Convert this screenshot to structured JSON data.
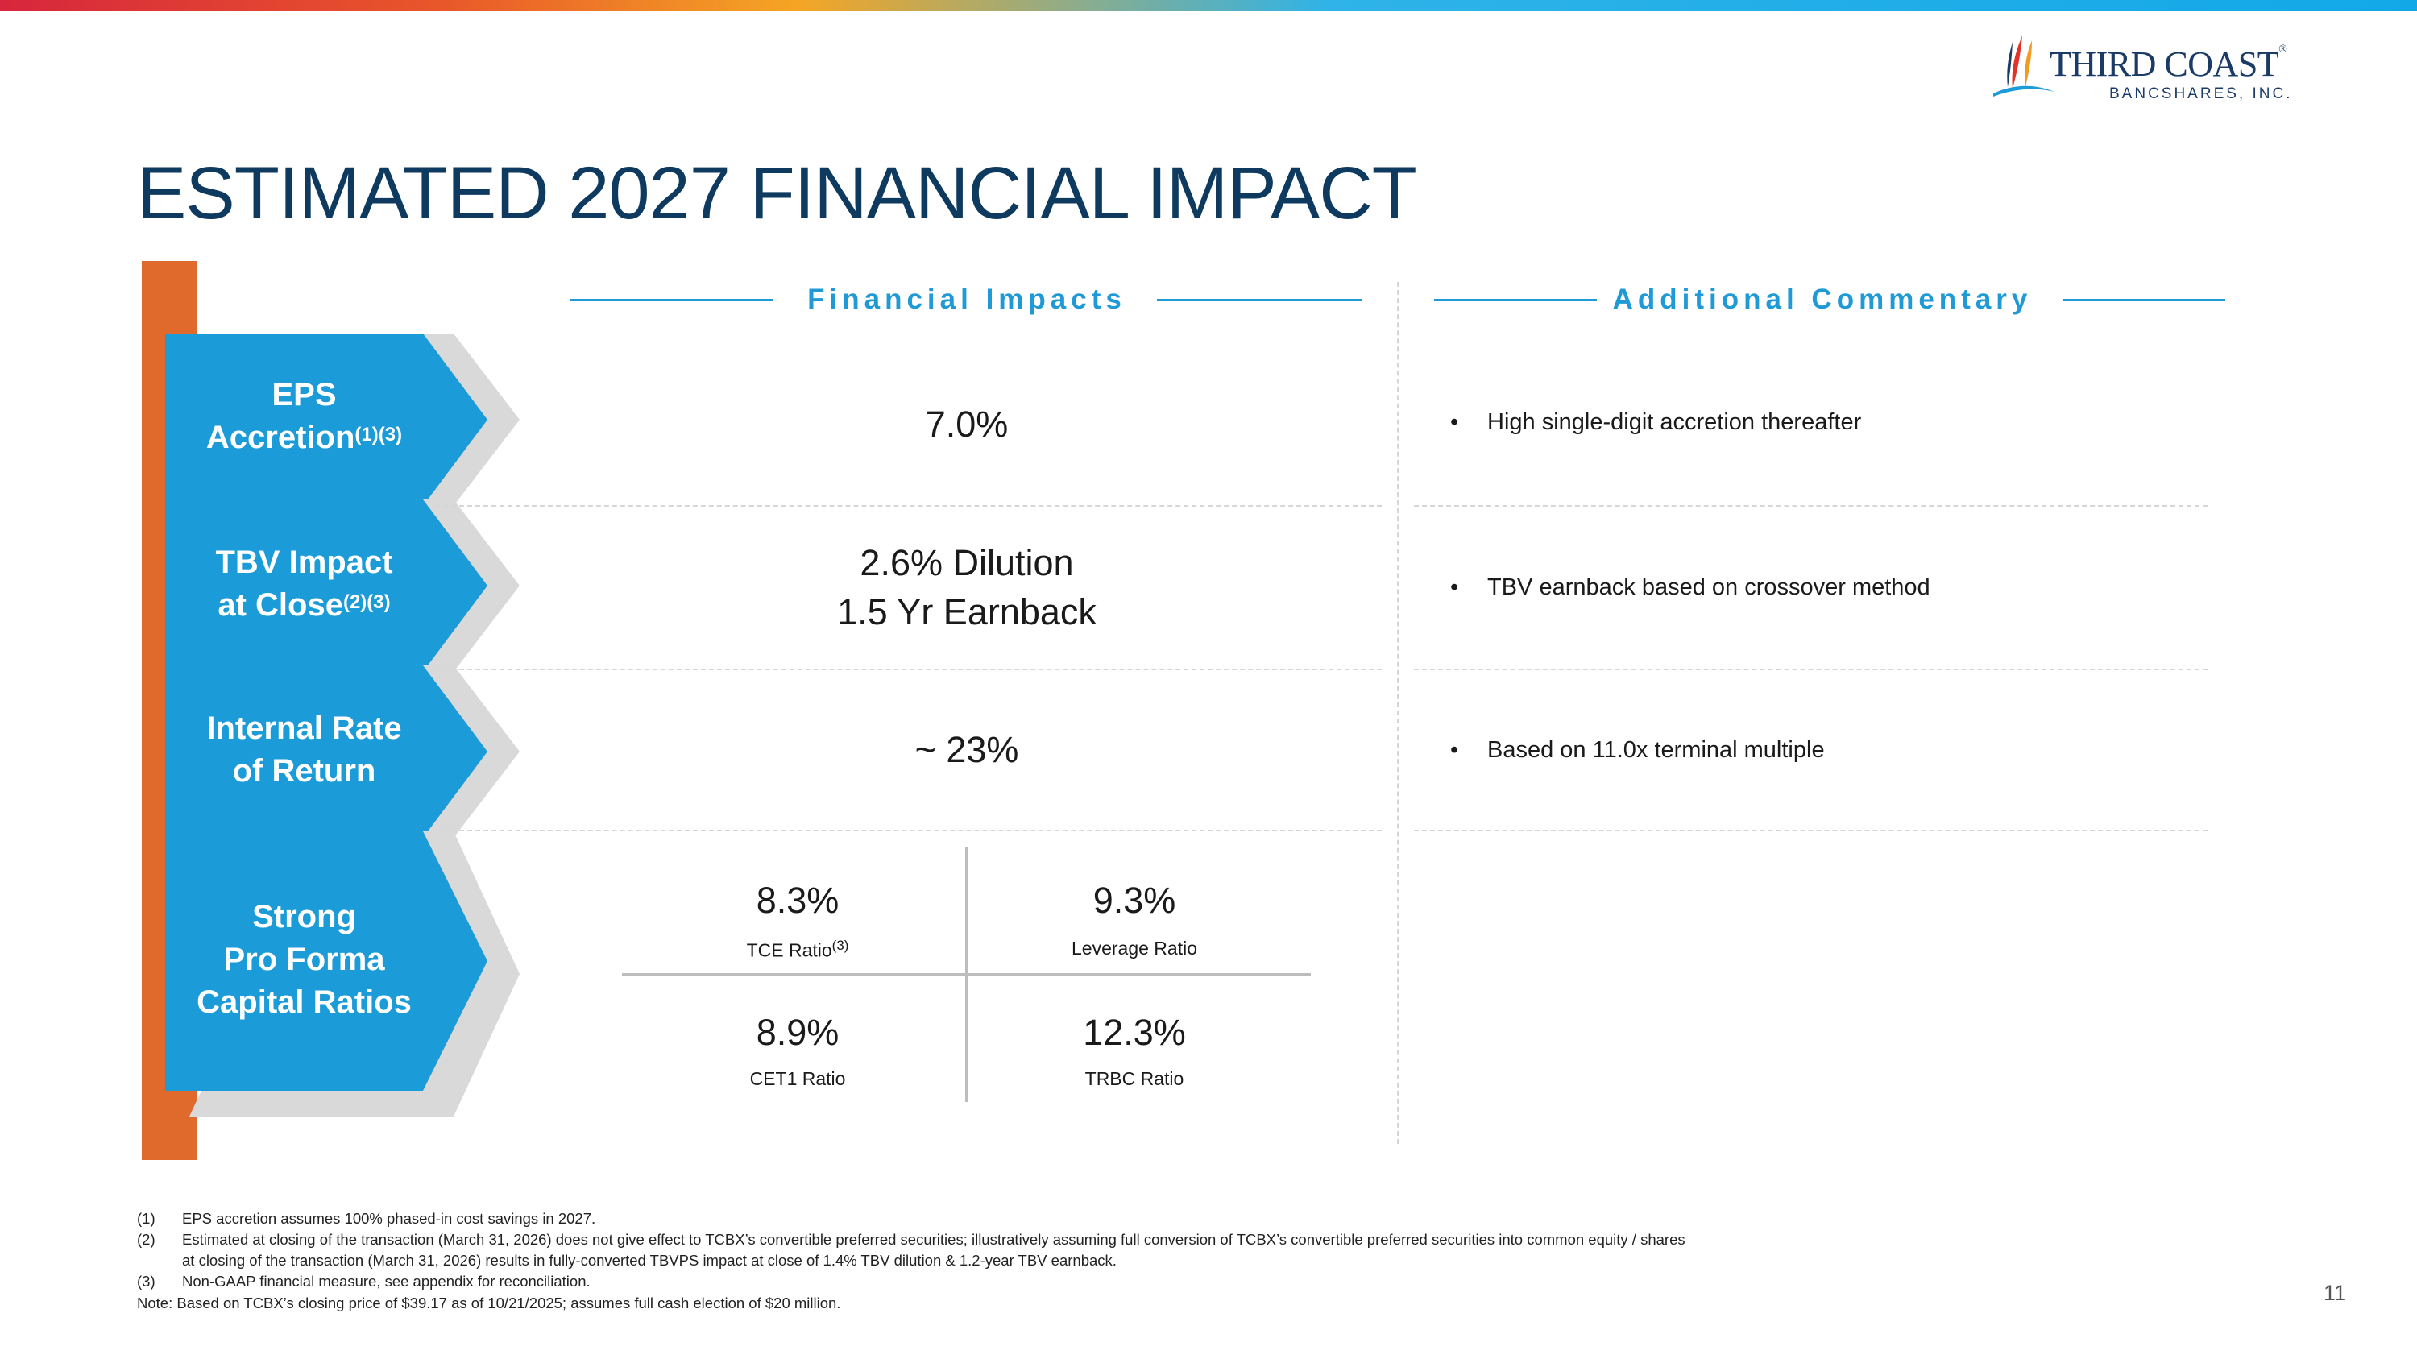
{
  "logo": {
    "name": "THIRD COAST",
    "registered": "®",
    "subtitle": "BANCSHARES, INC."
  },
  "title": "ESTIMATED 2027 FINANCIAL IMPACT",
  "sections": {
    "left_header": "Financial Impacts",
    "right_header": "Additional Commentary"
  },
  "colors": {
    "brand_blue": "#1b9bd7",
    "title_navy": "#0f3a5f",
    "orange": "#e06a2b",
    "header_blue": "#1f9ad6"
  },
  "rows": [
    {
      "label_line1": "EPS",
      "label_line2": "Accretion",
      "label_sup": "(1)(3)",
      "value": "7.0%",
      "comment": "High single-digit accretion thereafter"
    },
    {
      "label_line1": "TBV Impact",
      "label_line2": "at Close",
      "label_sup": "(2)(3)",
      "value_line1": "2.6% Dilution",
      "value_line2": "1.5 Yr Earnback",
      "comment": "TBV earnback based on crossover method"
    },
    {
      "label_line1": "Internal Rate",
      "label_line2": "of Return",
      "value": "~ 23%",
      "comment": "Based on 11.0x terminal multiple"
    },
    {
      "label_line1": "Strong",
      "label_line2": "Pro Forma",
      "label_line3": "Capital Ratios"
    }
  ],
  "capital_ratios": [
    {
      "value": "8.3%",
      "label": "TCE Ratio",
      "sup": "(3)"
    },
    {
      "value": "9.3%",
      "label": "Leverage Ratio"
    },
    {
      "value": "8.9%",
      "label": "CET1 Ratio"
    },
    {
      "value": "12.3%",
      "label": "TRBC Ratio"
    }
  ],
  "bullet_char": "•",
  "footnotes": [
    {
      "num": "(1)",
      "text": "EPS accretion assumes 100% phased-in cost savings in 2027."
    },
    {
      "num": "(2)",
      "text": "Estimated at closing of the transaction (March 31, 2026) does not give effect to TCBX’s convertible preferred securities; illustratively assuming full conversion of TCBX’s convertible preferred securities into common equity / shares",
      "text2": "at closing of the transaction (March 31, 2026) results in fully-converted TBVPS impact at close of 1.4% TBV dilution & 1.2-year TBV earnback."
    },
    {
      "num": "(3)",
      "text": "Non-GAAP financial measure, see appendix for reconciliation."
    },
    {
      "text": "Note: Based on TCBX’s closing price of $39.17 as of 10/21/2025; assumes full cash election of $20 million."
    }
  ],
  "page_number": "11"
}
